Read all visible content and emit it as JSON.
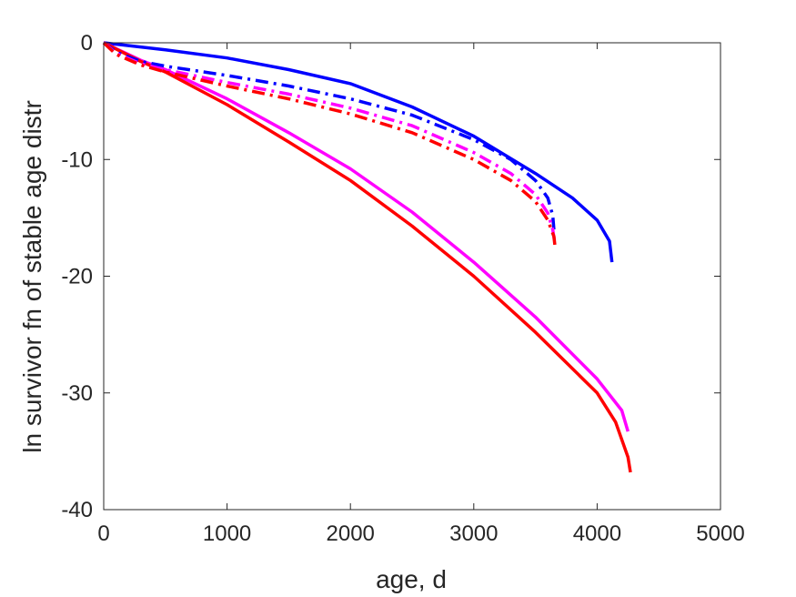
{
  "chart_data": {
    "type": "line",
    "title": "",
    "xlabel": "age, d",
    "ylabel": "ln survivor fn of stable age distr",
    "xlim": [
      0,
      5000
    ],
    "ylim": [
      -40,
      0
    ],
    "xticks": [
      0,
      1000,
      2000,
      3000,
      4000,
      5000
    ],
    "yticks": [
      0,
      -10,
      -20,
      -30,
      -40
    ],
    "xtick_labels": [
      "0",
      "1000",
      "2000",
      "3000",
      "4000",
      "5000"
    ],
    "ytick_labels": [
      "0",
      "-10",
      "-20",
      "-30",
      "-40"
    ],
    "grid": false,
    "legend": "none",
    "colors": {
      "blue": "#0000ff",
      "magenta": "#ff00ff",
      "red": "#ff0000",
      "axis": "#262626"
    },
    "series": [
      {
        "color": "#0000ff",
        "style": "solid",
        "x": [
          0,
          500,
          1000,
          1500,
          2000,
          2500,
          3000,
          3500,
          3800,
          4000,
          4100,
          4120
        ],
        "y": [
          0,
          -0.6,
          -1.3,
          -2.3,
          -3.5,
          -5.5,
          -8.0,
          -11.2,
          -13.3,
          -15.2,
          -17.0,
          -18.8
        ]
      },
      {
        "color": "#ff00ff",
        "style": "solid",
        "x": [
          0,
          300,
          500,
          1000,
          1500,
          2000,
          2500,
          3000,
          3500,
          4000,
          4200,
          4250
        ],
        "y": [
          0,
          -1.5,
          -2.3,
          -4.8,
          -7.7,
          -10.8,
          -14.5,
          -18.8,
          -23.5,
          -28.8,
          -31.5,
          -33.3
        ]
      },
      {
        "color": "#ff0000",
        "style": "solid",
        "x": [
          0,
          300,
          500,
          1000,
          1500,
          2000,
          2500,
          3000,
          3500,
          4000,
          4150,
          4200,
          4250,
          4270
        ],
        "y": [
          0,
          -1.6,
          -2.5,
          -5.3,
          -8.5,
          -11.8,
          -15.7,
          -20.0,
          -24.8,
          -30.0,
          -32.5,
          -34.0,
          -35.5,
          -36.8
        ]
      },
      {
        "color": "#0000ff",
        "style": "dashdot",
        "x": [
          0,
          100,
          300,
          500,
          1000,
          1500,
          2000,
          2500,
          3000,
          3300,
          3500,
          3600,
          3640,
          3650
        ],
        "y": [
          0,
          -0.8,
          -1.6,
          -2.0,
          -2.8,
          -3.7,
          -4.8,
          -6.2,
          -8.3,
          -10.0,
          -11.8,
          -13.3,
          -14.8,
          -16.0
        ]
      },
      {
        "color": "#ff00ff",
        "style": "dashdot",
        "x": [
          0,
          100,
          300,
          500,
          1000,
          1500,
          2000,
          2500,
          3000,
          3300,
          3500,
          3600,
          3640,
          3655
        ],
        "y": [
          0,
          -0.9,
          -1.8,
          -2.3,
          -3.4,
          -4.4,
          -5.6,
          -7.1,
          -9.4,
          -11.2,
          -13.0,
          -14.6,
          -16.0,
          -17.0
        ]
      },
      {
        "color": "#ff0000",
        "style": "dashdot",
        "x": [
          0,
          100,
          300,
          500,
          1000,
          1500,
          2000,
          2500,
          3000,
          3300,
          3500,
          3600,
          3650,
          3660
        ],
        "y": [
          0,
          -1.0,
          -1.9,
          -2.5,
          -3.7,
          -4.8,
          -6.1,
          -7.7,
          -10.0,
          -11.8,
          -13.6,
          -15.2,
          -16.6,
          -17.6
        ]
      }
    ]
  }
}
